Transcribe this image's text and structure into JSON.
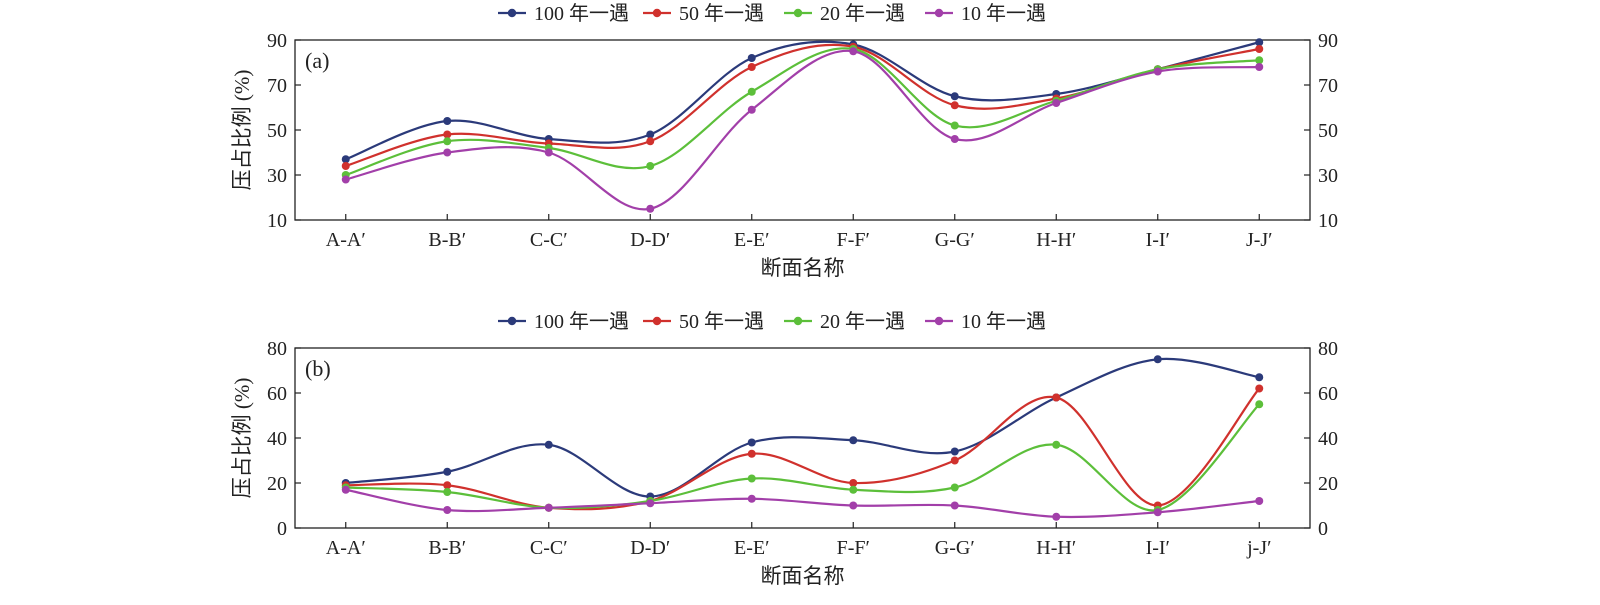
{
  "chart_data": [
    {
      "type": "line",
      "panel_label": "(a)",
      "xlabel": "断面名称",
      "ylabel": "压占比例 (%)",
      "categories": [
        "A-A′",
        "B-B′",
        "C-C′",
        "D-D′",
        "E-E′",
        "F-F′",
        "G-G′",
        "H-H′",
        "I-I′",
        "J-J′"
      ],
      "ylim": [
        10,
        90
      ],
      "yticks": [
        10,
        30,
        50,
        70,
        90
      ],
      "legend": "top-center",
      "grid": false,
      "series": [
        {
          "name": "100 年一遇",
          "color": "#2b3a7a",
          "values": [
            37,
            54,
            46,
            48,
            82,
            88,
            65,
            66,
            77,
            89
          ]
        },
        {
          "name": "50 年一遇",
          "color": "#d0312d",
          "values": [
            34,
            48,
            44,
            45,
            78,
            87,
            61,
            64,
            77,
            86
          ]
        },
        {
          "name": "20 年一遇",
          "color": "#5cbf3a",
          "values": [
            30,
            45,
            42,
            34,
            67,
            86,
            52,
            63,
            77,
            81
          ]
        },
        {
          "name": "10 年一遇",
          "color": "#a23fa9",
          "values": [
            28,
            40,
            40,
            15,
            59,
            85,
            46,
            62,
            76,
            78
          ]
        }
      ]
    },
    {
      "type": "line",
      "panel_label": "(b)",
      "xlabel": "断面名称",
      "ylabel": "压占比例 (%)",
      "categories": [
        "A-A′",
        "B-B′",
        "C-C′",
        "D-D′",
        "E-E′",
        "F-F′",
        "G-G′",
        "H-H′",
        "I-I′",
        "j-J′"
      ],
      "ylim": [
        0,
        80
      ],
      "yticks": [
        0,
        20,
        40,
        60,
        80
      ],
      "legend": "top-center",
      "grid": false,
      "series": [
        {
          "name": "100 年一遇",
          "color": "#2b3a7a",
          "values": [
            20,
            25,
            37,
            14,
            38,
            39,
            34,
            58,
            75,
            67
          ]
        },
        {
          "name": "50 年一遇",
          "color": "#d0312d",
          "values": [
            19,
            19,
            9,
            12,
            33,
            20,
            30,
            58,
            10,
            62
          ]
        },
        {
          "name": "20 年一遇",
          "color": "#5cbf3a",
          "values": [
            18,
            16,
            9,
            12,
            22,
            17,
            18,
            37,
            8,
            55
          ]
        },
        {
          "name": "10 年一遇",
          "color": "#a23fa9",
          "values": [
            17,
            8,
            9,
            11,
            13,
            10,
            10,
            5,
            7,
            12
          ]
        }
      ]
    }
  ]
}
